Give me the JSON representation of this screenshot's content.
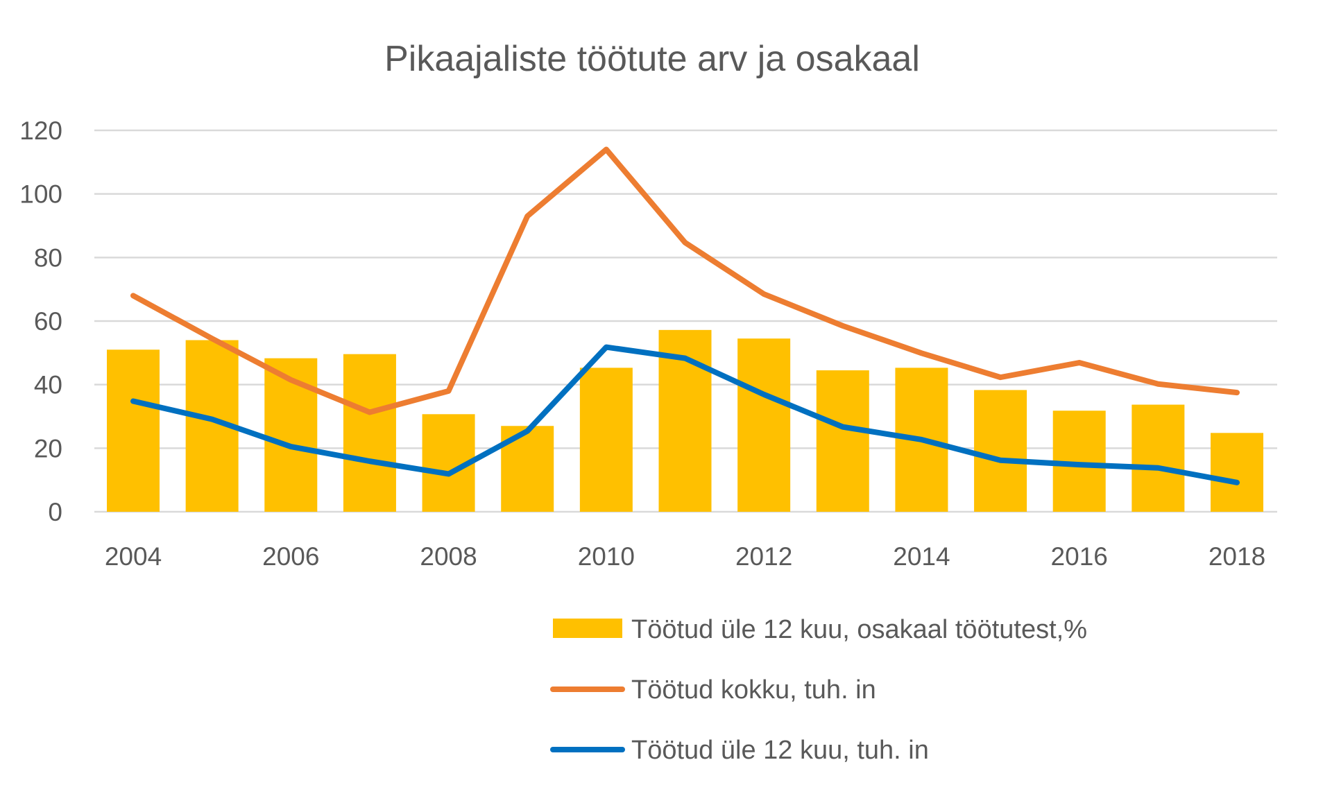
{
  "chart_data": {
    "type": "bar",
    "title": "Pikaajaliste töötute arv ja osakaal",
    "xlabel": "",
    "ylabel": "",
    "ylim": [
      0,
      120
    ],
    "yticks": [
      "0",
      "20",
      "40",
      "60",
      "80",
      "100",
      "120"
    ],
    "ytick_values": [
      0,
      20,
      40,
      60,
      80,
      100,
      120
    ],
    "categories": [
      2004,
      2005,
      2006,
      2007,
      2008,
      2009,
      2010,
      2011,
      2012,
      2013,
      2014,
      2015,
      2016,
      2017,
      2018
    ],
    "xtick_labels": [
      "2004",
      "2006",
      "2008",
      "2010",
      "2012",
      "2014",
      "2016",
      "2018"
    ],
    "grid": true,
    "legend_position": "bottom-right",
    "series": [
      {
        "name": "Töötud üle 12 kuu, osakaal töötutest,%",
        "kind": "bar",
        "color": "#FFC000",
        "values": [
          51,
          54,
          48.3,
          49.6,
          30.7,
          27,
          45.3,
          57.2,
          54.5,
          44.5,
          45.3,
          38.3,
          31.8,
          33.7,
          24.8
        ]
      },
      {
        "name": "Töötud kokku, tuh. in",
        "kind": "line",
        "color": "#ED7D31",
        "values": [
          68,
          54.5,
          41.5,
          31.3,
          38,
          93,
          114,
          84.7,
          68.5,
          58.5,
          49.9,
          42.3,
          46.9,
          40.2,
          37.5
        ]
      },
      {
        "name": "Töötud üle 12 kuu, tuh. in",
        "kind": "line",
        "color": "#0070C0",
        "values": [
          34.8,
          29.1,
          20.5,
          15.9,
          11.9,
          25.4,
          51.8,
          48.3,
          36.9,
          26.7,
          22.7,
          16.2,
          14.8,
          13.8,
          9.2
        ]
      }
    ]
  }
}
